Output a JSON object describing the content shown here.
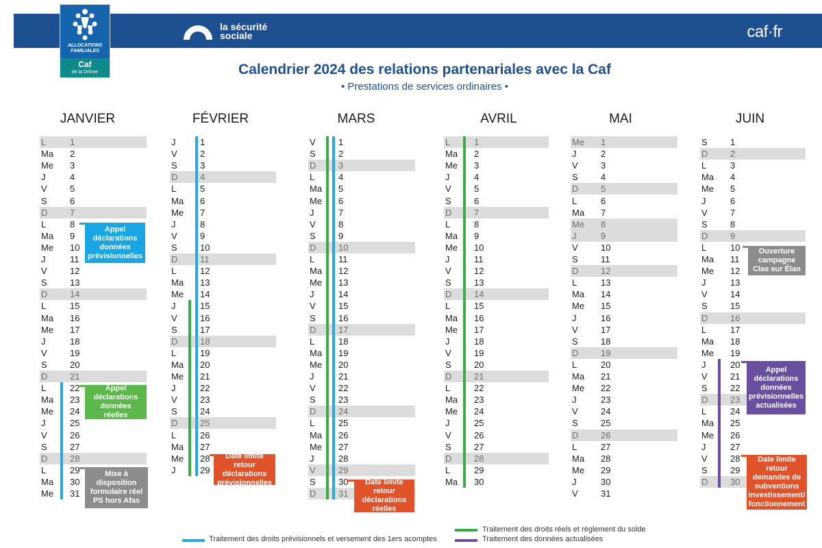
{
  "header": {
    "caf_logo_line1": "ALLOCATIONS FAMILIALES",
    "caf_logo_line2": "Caf",
    "caf_logo_line3": "de la Drôme",
    "secu_line1": "la sécurité",
    "secu_line2": "sociale",
    "caffr": "caf·fr"
  },
  "title": "Calendrier 2024 des relations partenariales avec la Caf",
  "subtitle": "• Prestations de services ordinaires •",
  "colors": {
    "blue_bar": "#29a8e0",
    "green_bar": "#3aaa48",
    "purple_bar": "#6a4fa0",
    "note_blue": "#1aa5e3",
    "note_green": "#5cb84a",
    "note_grey": "#8c8c8c",
    "note_red": "#e0522a",
    "note_purple": "#6a4fa0",
    "banner": "#1d4f91"
  },
  "months": [
    {
      "name": "JANVIER",
      "start": "L",
      "days": 31
    },
    {
      "name": "FÉVRIER",
      "start": "J",
      "days": 29
    },
    {
      "name": "MARS",
      "start": "V",
      "days": 31
    },
    {
      "name": "AVRIL",
      "start": "L",
      "days": 30
    },
    {
      "name": "MAI",
      "start": "Me",
      "days": 31
    },
    {
      "name": "JUIN",
      "start": "S",
      "days": 30
    }
  ],
  "notes": [
    {
      "text": "Appel déclarations données prévisionnelles",
      "color": "note_blue",
      "month": 0,
      "from": 8,
      "to": 11
    },
    {
      "text": "Appel déclarations données réelles",
      "color": "note_green",
      "month": 0,
      "from": 22,
      "to": 24
    },
    {
      "text": "Mise à disposition formulaire réel PS hors Afas",
      "color": "note_grey",
      "month": 0,
      "from": 29,
      "to": 31
    },
    {
      "text": "Date limite retour déclarations prévisionnelles",
      "color": "note_red",
      "month": 1,
      "from": 28,
      "to": 29
    },
    {
      "text": "Date limite retour déclarations réelles",
      "color": "note_red",
      "month": 2,
      "from": 30,
      "to": 32
    },
    {
      "text": "Ouverture campagne Clas sur Élan",
      "color": "note_grey",
      "month": 5,
      "from": 10,
      "to": 12
    },
    {
      "text": "Appel déclarations données prévisionnelles actualisées",
      "color": "note_purple",
      "month": 5,
      "from": 20,
      "to": 23
    },
    {
      "text": "Date limite retour demandes de subventions investissement/ fonctionnement",
      "color": "note_red",
      "month": 5,
      "from": 28,
      "to": 30
    }
  ],
  "legend": [
    {
      "text": "Traitement des droits prévisionnels et versement des 1ers acomptes",
      "color": "blue_bar"
    },
    {
      "text": "Traitement des droits réels et réglement du solde",
      "color": "green_bar"
    },
    {
      "text": "Traitement des données actualisées",
      "color": "purple_bar"
    }
  ]
}
